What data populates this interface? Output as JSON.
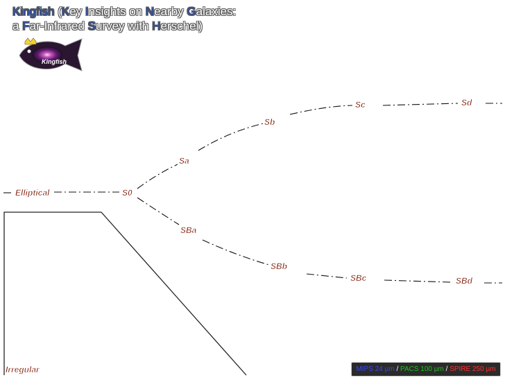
{
  "title": {
    "line1": [
      {
        "t": "K",
        "hl": true
      },
      {
        "t": "ingfish",
        "hl": true
      },
      {
        "t": " (",
        "hl": false
      },
      {
        "t": "K",
        "hl": true
      },
      {
        "t": "ey ",
        "hl": false
      },
      {
        "t": "I",
        "hl": true
      },
      {
        "t": "nsights on ",
        "hl": false
      },
      {
        "t": "N",
        "hl": true
      },
      {
        "t": "earby ",
        "hl": false
      },
      {
        "t": "G",
        "hl": true
      },
      {
        "t": "alaxies:",
        "hl": false
      }
    ],
    "line2": [
      {
        "t": "a ",
        "hl": false
      },
      {
        "t": "F",
        "hl": true
      },
      {
        "t": "ar-Infrared ",
        "hl": false
      },
      {
        "t": "S",
        "hl": true
      },
      {
        "t": "urvey with ",
        "hl": false
      },
      {
        "t": "H",
        "hl": true
      },
      {
        "t": "erschel)",
        "hl": false
      }
    ]
  },
  "logo": {
    "icon": "kingfish-logo-icon",
    "text": "Kingfish"
  },
  "labels": {
    "elliptical": "Elliptical",
    "s0": "S0",
    "sa": "Sa",
    "sb": "Sb",
    "sc": "Sc",
    "sd": "Sd",
    "sba": "SBa",
    "sbb": "SBb",
    "sbc": "SBc",
    "sbd": "SBd",
    "irregular": "Irregular"
  },
  "legend": {
    "mips": "MIPS 24 µm",
    "pacs": "PACS 100 µm",
    "spire": "SPIRE 250 µm",
    "separator": " / ",
    "colors": {
      "mips": "#3a46ff",
      "pacs": "#22c022",
      "spire": "#ff3030"
    }
  }
}
